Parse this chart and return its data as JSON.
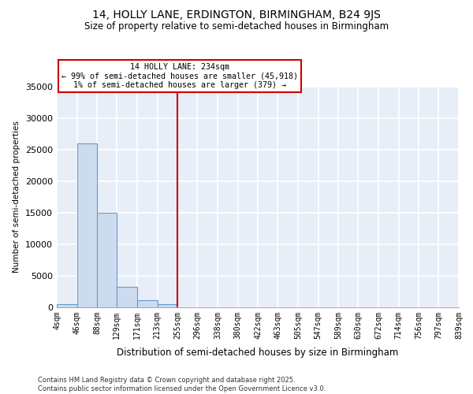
{
  "title": "14, HOLLY LANE, ERDINGTON, BIRMINGHAM, B24 9JS",
  "subtitle": "Size of property relative to semi-detached houses in Birmingham",
  "xlabel": "Distribution of semi-detached houses by size in Birmingham",
  "ylabel": "Number of semi-detached properties",
  "bin_edges": [
    4,
    46,
    88,
    129,
    171,
    213,
    255,
    296,
    338,
    380,
    422,
    463,
    505,
    547,
    589,
    630,
    672,
    714,
    756,
    797,
    839
  ],
  "bar_heights": [
    500,
    26000,
    15000,
    3200,
    1100,
    500,
    50,
    30,
    20,
    10,
    5,
    5,
    5,
    5,
    5,
    5,
    5,
    5,
    5,
    5
  ],
  "bar_color": "#ccdcee",
  "bar_edge_color": "#6699cc",
  "red_line_x": 255,
  "annotation_text": "14 HOLLY LANE: 234sqm\n← 99% of semi-detached houses are smaller (45,918)\n1% of semi-detached houses are larger (379) →",
  "ylim": [
    0,
    35000
  ],
  "yticks": [
    0,
    5000,
    10000,
    15000,
    20000,
    25000,
    30000,
    35000
  ],
  "background_color": "#e8eef8",
  "grid_color": "#ffffff",
  "footer_text": "Contains HM Land Registry data © Crown copyright and database right 2025.\nContains public sector information licensed under the Open Government Licence v3.0.",
  "annotation_box_facecolor": "#ffffff",
  "annotation_box_edgecolor": "#cc0000"
}
